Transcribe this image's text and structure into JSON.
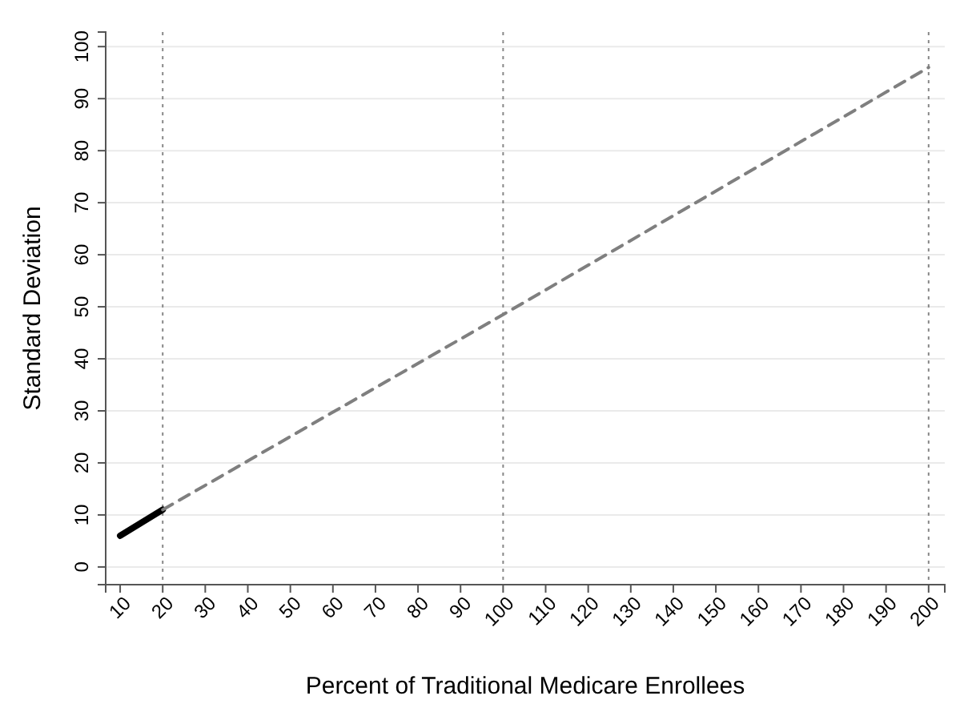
{
  "chart_data": {
    "type": "line",
    "xlabel": "Percent of Traditional Medicare Enrollees",
    "ylabel": "Standard Deviation",
    "xlim": [
      6.6,
      203.8
    ],
    "ylim": [
      -3.4,
      102.8
    ],
    "xticks": [
      10,
      20,
      30,
      40,
      50,
      60,
      70,
      80,
      90,
      100,
      110,
      120,
      130,
      140,
      150,
      160,
      170,
      180,
      190,
      200
    ],
    "yticks": [
      0,
      10,
      20,
      30,
      40,
      50,
      60,
      70,
      80,
      90,
      100
    ],
    "grid": "y",
    "marker": "none",
    "series": [
      {
        "color": "#000000",
        "line_style": "solid",
        "x": [
          10,
          20
        ],
        "values": [
          6,
          11
        ]
      },
      {
        "color": "#7f7f7f",
        "line_style": "dashed",
        "x": [
          20,
          100,
          200
        ],
        "values": [
          11,
          48.5,
          96
        ]
      }
    ],
    "ref_lines": [
      {
        "axis": "x",
        "value": 20,
        "color": "#888888",
        "line_style": "dotted"
      },
      {
        "axis": "x",
        "value": 100,
        "color": "#888888",
        "line_style": "dotted"
      },
      {
        "axis": "x",
        "value": 200,
        "color": "#888888",
        "line_style": "dotted"
      }
    ]
  }
}
